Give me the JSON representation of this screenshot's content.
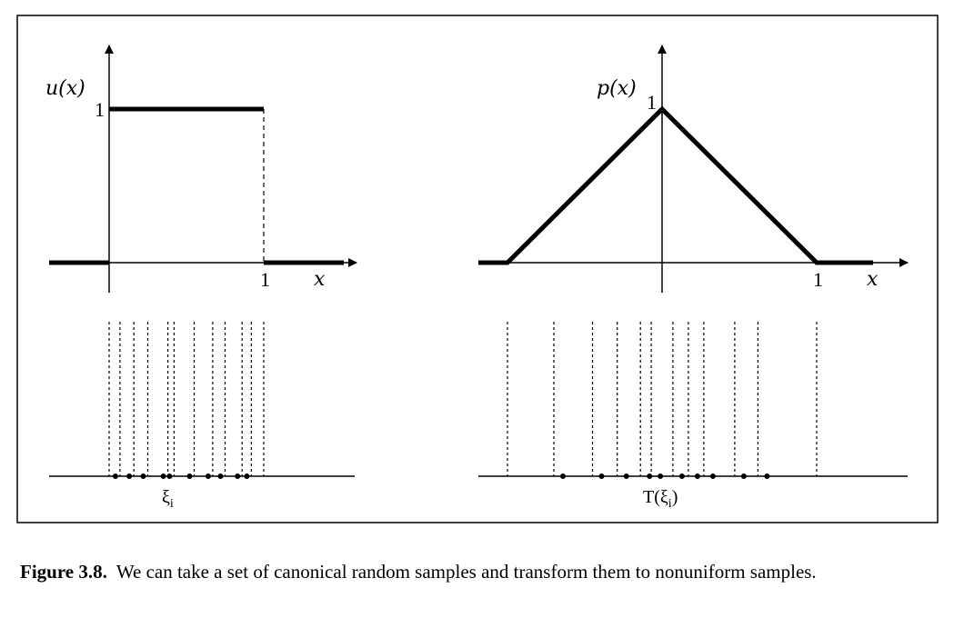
{
  "figure": {
    "left_plot": {
      "function_label": "u(x)",
      "y_tick": "1",
      "x_tick": "1",
      "x_axis_label": "x",
      "samples_label": "ξ",
      "samples_sub": "i",
      "sample_values": [
        0.07,
        0.16,
        0.25,
        0.38,
        0.42,
        0.55,
        0.67,
        0.75,
        0.86,
        0.92
      ]
    },
    "right_plot": {
      "function_label": "p(x)",
      "peak_tick": "1",
      "x_tick": "1",
      "x_axis_label": "x",
      "samples_label": "T(ξ",
      "samples_sub": "i",
      "samples_close": ")",
      "sample_values": [
        -0.7,
        -0.45,
        -0.29,
        -0.14,
        -0.07,
        0.07,
        0.17,
        0.27,
        0.47,
        0.62
      ],
      "boundary_values": [
        -1,
        1
      ]
    }
  },
  "caption": {
    "label": "Figure 3.8.",
    "text": "We can take a set of canonical random samples and transform them to nonuniform samples."
  }
}
